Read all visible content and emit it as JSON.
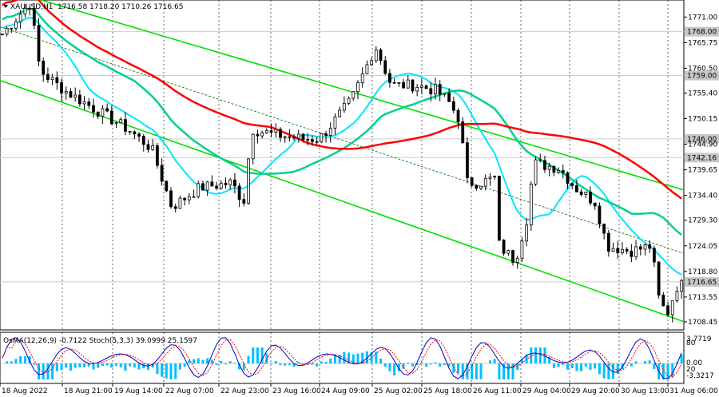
{
  "chart_data": {
    "type": "candlestick",
    "title": "XAUUSD,H1",
    "ohlc_header": "1716.58 1718.20 1710.26 1716.65",
    "symbol": "XAUUSD",
    "timeframe": "H1",
    "y_ticks": [
      "1771.00",
      "1765.75",
      "1760.50",
      "1755.40",
      "1750.15",
      "1744.90",
      "1739.65",
      "1734.40",
      "1729.30",
      "1724.05",
      "1718.80",
      "1713.55",
      "1708.45"
    ],
    "x_ticks": [
      "18 Aug 2022",
      "18 Aug 21:00",
      "19 Aug 14:00",
      "22 Aug 07:00",
      "22 Aug 23:00",
      "23 Aug 16:00",
      "24 Aug 09:00",
      "25 Aug 02:00",
      "25 Aug 18:00",
      "26 Aug 11:00",
      "29 Aug 04:00",
      "29 Aug 20:00",
      "30 Aug 13:00",
      "31 Aug 06:00"
    ],
    "ylim": [
      1706.8,
      1774.5
    ],
    "price_levels": [
      {
        "value": "1768.00",
        "color": "#cccccc"
      },
      {
        "value": "1759.00",
        "color": "#cccccc"
      },
      {
        "value": "1746.00",
        "color": "#cccccc"
      },
      {
        "value": "1742.16",
        "color": "#cccccc"
      },
      {
        "value": "1716.65",
        "color": "#cccccc"
      }
    ],
    "colors": {
      "ma_red": "#ff0000",
      "ma_green": "#00d090",
      "ma_cyan": "#00e5ff",
      "channel": "#00e000",
      "channel_mid": "#006400",
      "candle": "#000000",
      "osma_bar": "#00bfff",
      "stoch_main": "#0000cd",
      "stoch_signal": "#ff0000"
    },
    "indicator": {
      "header": "OsMA(12,26,9) -0.7122 Stoch(5,3,3) 39.0999 25.1597",
      "osma_name": "OsMA(12,26,9)",
      "osma_value": "-0.7122",
      "stoch_name": "Stoch(5,3,3)",
      "stoch_main": "39.0999",
      "stoch_signal": "25.1597",
      "labels": [
        "3.7719",
        "80",
        "0.00",
        "20",
        "-3.3217"
      ]
    }
  }
}
